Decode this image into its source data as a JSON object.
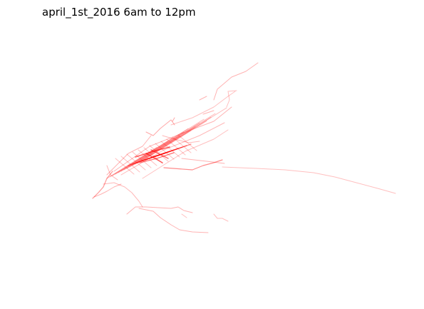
{
  "title": "april_1st_2016 6am to 12pm",
  "trip_color": "#ff0000"
}
